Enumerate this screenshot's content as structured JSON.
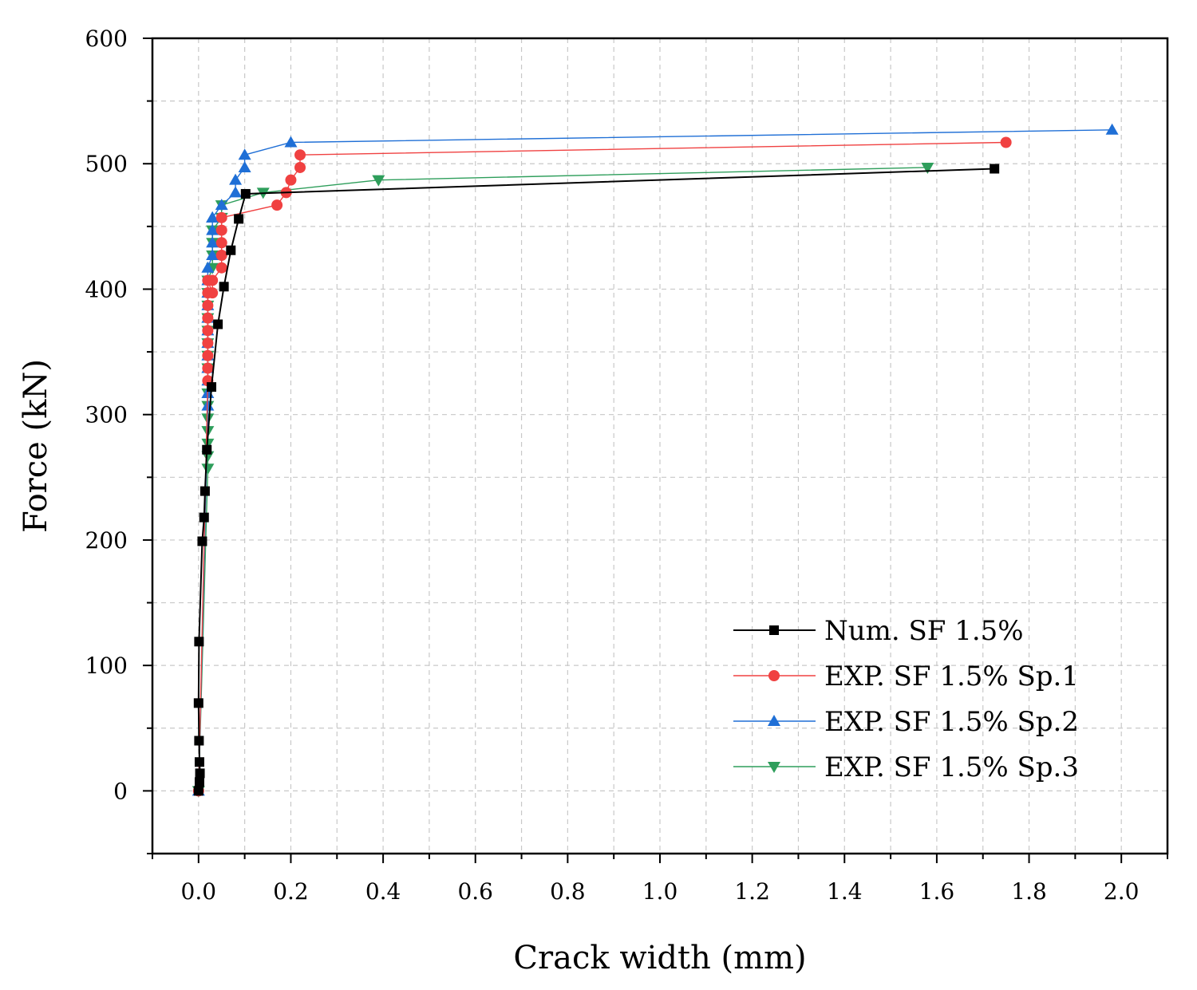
{
  "chart_data": {
    "type": "line",
    "title": "",
    "xlabel": "Crack width (mm)",
    "ylabel": "Force (kN)",
    "xlim": [
      -0.1,
      2.1
    ],
    "ylim": [
      -50,
      600
    ],
    "xticks": [
      "0.0",
      "0.2",
      "0.4",
      "0.6",
      "0.8",
      "1.0",
      "1.2",
      "1.4",
      "1.6",
      "1.8",
      "2.0"
    ],
    "yticks": [
      "0",
      "100",
      "200",
      "300",
      "400",
      "500",
      "600"
    ],
    "grid": true,
    "legend_position": "bottom-right",
    "series": [
      {
        "name": "Num. SF 1.5%",
        "color": "#000000",
        "marker": "square",
        "x": [
          0.0,
          0.002,
          0.003,
          0.002,
          0.001,
          0.0,
          0.001,
          0.008,
          0.012,
          0.014,
          0.018,
          0.028,
          0.042,
          0.055,
          0.07,
          0.087,
          0.102,
          1.725
        ],
        "y": [
          0,
          7,
          14,
          23,
          40,
          70,
          119,
          199,
          218,
          239,
          272,
          322,
          372,
          402,
          431,
          456,
          476,
          496
        ]
      },
      {
        "name": "EXP. SF 1.5% Sp.1",
        "color": "#f04141",
        "marker": "circle",
        "x": [
          0.0,
          0.02,
          0.02,
          0.02,
          0.02,
          0.02,
          0.02,
          0.02,
          0.02,
          0.02,
          0.03,
          0.03,
          0.05,
          0.05,
          0.05,
          0.05,
          0.05,
          0.17,
          0.19,
          0.2,
          0.22,
          0.22,
          1.75
        ],
        "y": [
          0,
          327,
          337,
          347,
          357,
          367,
          377,
          387,
          397,
          407,
          397,
          407,
          417,
          427,
          437,
          447,
          457,
          467,
          477,
          487,
          497,
          507,
          517
        ]
      },
      {
        "name": "EXP. SF 1.5% Sp.2",
        "color": "#1f6fd6",
        "marker": "triangle-up",
        "x": [
          0.0,
          0.02,
          0.02,
          0.02,
          0.02,
          0.02,
          0.02,
          0.02,
          0.02,
          0.02,
          0.02,
          0.02,
          0.02,
          0.03,
          0.03,
          0.03,
          0.03,
          0.03,
          0.05,
          0.08,
          0.08,
          0.1,
          0.1,
          0.2,
          1.98
        ],
        "y": [
          0,
          307,
          317,
          327,
          337,
          347,
          357,
          367,
          377,
          387,
          397,
          407,
          417,
          427,
          437,
          447,
          457,
          457,
          467,
          477,
          487,
          497,
          507,
          517,
          527
        ]
      },
      {
        "name": "EXP. SF 1.5% Sp.3",
        "color": "#2e9e5b",
        "marker": "triangle-down",
        "x": [
          0.0,
          0.02,
          0.02,
          0.02,
          0.02,
          0.02,
          0.02,
          0.02,
          0.02,
          0.02,
          0.02,
          0.02,
          0.02,
          0.02,
          0.02,
          0.02,
          0.03,
          0.03,
          0.03,
          0.03,
          0.05,
          0.05,
          0.14,
          0.39,
          1.58
        ],
        "y": [
          0,
          257,
          267,
          277,
          287,
          297,
          307,
          317,
          337,
          347,
          357,
          367,
          377,
          387,
          397,
          407,
          417,
          427,
          437,
          447,
          457,
          467,
          477,
          487,
          497
        ]
      }
    ]
  }
}
